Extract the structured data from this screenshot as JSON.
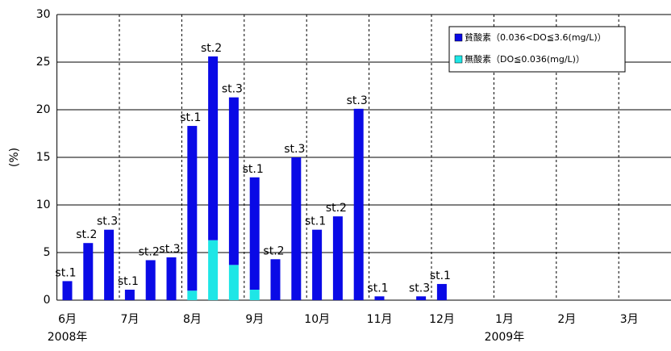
{
  "chart_data": {
    "type": "bar",
    "stacked": true,
    "y_label": "(%)",
    "months": [
      "6月",
      "7月",
      "8月",
      "9月",
      "10月",
      "11月",
      "12月",
      "1月",
      "2月",
      "3月"
    ],
    "years": [
      "2008年",
      null,
      null,
      null,
      null,
      null,
      null,
      "2009年",
      null,
      null
    ],
    "categories": [
      "st.1",
      "st.2",
      "st.3",
      "st.1",
      "st.2",
      "st.3",
      "st.1",
      "st.2",
      "st.3",
      "st.1",
      "st.2",
      "st.3",
      "st.1",
      "st.2",
      "st.3",
      "st.1",
      null,
      "st.3",
      "st.1",
      null,
      null,
      null,
      null,
      null,
      null,
      null,
      null,
      null,
      null,
      null
    ],
    "series": [
      {
        "name": "貧酸素（0.036<DO≦3.6(mg/L)）",
        "color": "#0a0ae6",
        "values": [
          2.0,
          6.0,
          7.4,
          1.1,
          4.2,
          4.5,
          17.3,
          19.3,
          17.6,
          11.8,
          4.3,
          15.0,
          7.4,
          8.8,
          20.1,
          0.4,
          null,
          0.4,
          1.7,
          null,
          null,
          null,
          null,
          null,
          null,
          null,
          null,
          null,
          null,
          null
        ]
      },
      {
        "name": "無酸素（DO≦0.036(mg/L)）",
        "color": "#1ee6e6",
        "values": [
          null,
          null,
          null,
          null,
          null,
          null,
          1.0,
          6.3,
          3.7,
          1.1,
          null,
          null,
          null,
          null,
          null,
          null,
          null,
          null,
          null,
          null,
          null,
          null,
          null,
          null,
          null,
          null,
          null,
          null,
          null,
          null
        ]
      }
    ],
    "stack_order": [
      1,
      0
    ],
    "ylim": [
      0,
      30
    ],
    "yticks": [
      0,
      5,
      10,
      15,
      20,
      25,
      30
    ],
    "grid": true
  }
}
